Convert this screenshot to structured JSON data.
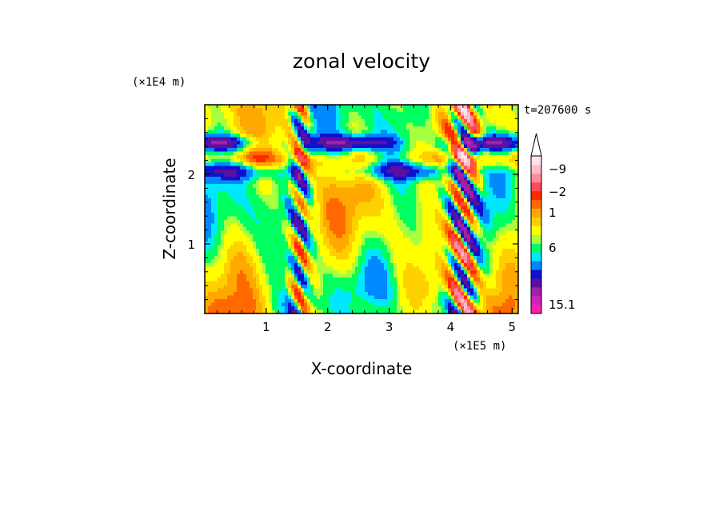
{
  "chart_data": {
    "type": "heatmap",
    "title": "zonal velocity",
    "xlabel": "X-coordinate",
    "ylabel": "Z-coordinate",
    "x_scale_label": "(×1E5 m)",
    "y_scale_label": "(×1E4 m)",
    "time_label": "t=207600 s",
    "xlim": [
      0,
      5.1
    ],
    "ylim": [
      0,
      3.0
    ],
    "x_ticks": [
      "1",
      "2",
      "3",
      "4",
      "5"
    ],
    "y_ticks": [
      "1",
      "2"
    ],
    "colorbar": {
      "tick_labels": [
        "15.1",
        "6",
        "1",
        "−2",
        "−9"
      ],
      "arrow": "top",
      "colors": [
        "#ff1fa8",
        "#d21fbf",
        "#a020a8",
        "#5a10a0",
        "#1010d0",
        "#0088ff",
        "#00e8ff",
        "#00ff60",
        "#a8ff40",
        "#ffff00",
        "#ffd000",
        "#ffa800",
        "#ff6a00",
        "#ff2a00",
        "#ff4a5a",
        "#ff8a9a",
        "#ffbcc8",
        "#ffe2ea"
      ]
    }
  }
}
